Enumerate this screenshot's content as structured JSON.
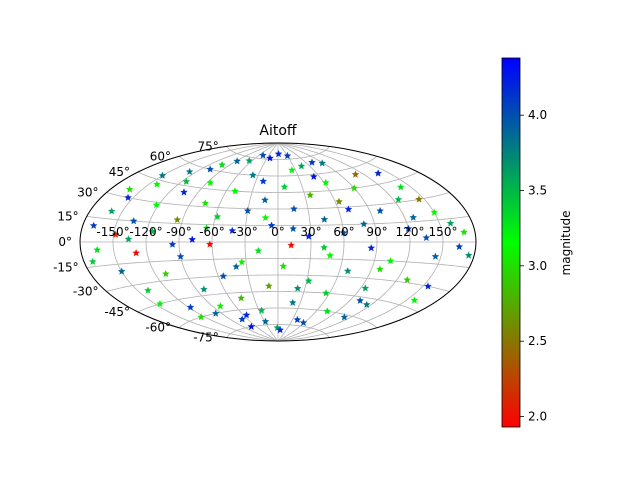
{
  "chart_data": {
    "type": "scatter",
    "projection": "aitoff",
    "title": "Aitoff",
    "grid": true,
    "marker": "star",
    "longitude_ticks": [
      "-150°",
      "-120°",
      "-90°",
      "-60°",
      "-30°",
      "0°",
      "30°",
      "60°",
      "90°",
      "120°",
      "150°"
    ],
    "latitude_ticks": [
      "75°",
      "60°",
      "45°",
      "30°",
      "15°",
      "0°",
      "-15°",
      "-30°",
      "-45°",
      "-60°",
      "-75°"
    ],
    "colorbar": {
      "label": "magnitude",
      "range": [
        1.93,
        4.38
      ],
      "ticks": [
        "2.0",
        "2.5",
        "3.0",
        "3.5",
        "4.0"
      ],
      "colors": [
        "#ff0000",
        "#00ff00",
        "#0000ff"
      ]
    },
    "points": [
      {
        "lon": -170,
        "lat": 10,
        "mag": 4.1
      },
      {
        "lon": -165,
        "lat": -5,
        "mag": 3.3
      },
      {
        "lon": -160,
        "lat": 20,
        "mag": 3.6
      },
      {
        "lon": -155,
        "lat": 30,
        "mag": 4.2
      },
      {
        "lon": -150,
        "lat": -20,
        "mag": 3.9
      },
      {
        "lon": -148,
        "lat": 5,
        "mag": 2.1
      },
      {
        "lon": -142,
        "lat": 42,
        "mag": 3.1
      },
      {
        "lon": -140,
        "lat": -35,
        "mag": 3.4
      },
      {
        "lon": -135,
        "lat": 15,
        "mag": 4.0
      },
      {
        "lon": -130,
        "lat": -8,
        "mag": 1.95
      },
      {
        "lon": -128,
        "lat": 55,
        "mag": 3.8
      },
      {
        "lon": -122,
        "lat": 28,
        "mag": 3.2
      },
      {
        "lon": -118,
        "lat": -52,
        "mag": 4.1
      },
      {
        "lon": -115,
        "lat": 8,
        "mag": 3.5
      },
      {
        "lon": -110,
        "lat": -25,
        "mag": 2.9
      },
      {
        "lon": -105,
        "lat": 40,
        "mag": 4.2
      },
      {
        "lon": -102,
        "lat": 65,
        "mag": 3.3
      },
      {
        "lon": -98,
        "lat": -60,
        "mag": 3.9
      },
      {
        "lon": -95,
        "lat": 18,
        "mag": 2.6
      },
      {
        "lon": -90,
        "lat": -12,
        "mag": 4.0
      },
      {
        "lon": -86,
        "lat": 50,
        "mag": 3.1
      },
      {
        "lon": -82,
        "lat": -40,
        "mag": 3.7
      },
      {
        "lon": -78,
        "lat": 2,
        "mag": 4.3
      },
      {
        "lon": -75,
        "lat": 33,
        "mag": 3.0
      },
      {
        "lon": -70,
        "lat": -68,
        "mag": 4.1
      },
      {
        "lon": -66,
        "lat": 72,
        "mag": 3.6
      },
      {
        "lon": -62,
        "lat": -2,
        "mag": 1.97
      },
      {
        "lon": -58,
        "lat": 22,
        "mag": 3.4
      },
      {
        "lon": -55,
        "lat": -30,
        "mag": 4.0
      },
      {
        "lon": -50,
        "lat": 45,
        "mag": 3.2
      },
      {
        "lon": -46,
        "lat": -50,
        "mag": 2.8
      },
      {
        "lon": -42,
        "lat": 10,
        "mag": 4.2
      },
      {
        "lon": -38,
        "lat": 60,
        "mag": 3.8
      },
      {
        "lon": -34,
        "lat": -18,
        "mag": 3.1
      },
      {
        "lon": -30,
        "lat": 28,
        "mag": 4.0
      },
      {
        "lon": -26,
        "lat": -62,
        "mag": 3.5
      },
      {
        "lon": -22,
        "lat": 76,
        "mag": 4.3
      },
      {
        "lon": -18,
        "lat": -8,
        "mag": 3.3
      },
      {
        "lon": -14,
        "lat": 38,
        "mag": 3.9
      },
      {
        "lon": -10,
        "lat": -40,
        "mag": 2.7
      },
      {
        "lon": -6,
        "lat": 15,
        "mag": 4.1
      },
      {
        "lon": -2,
        "lat": -78,
        "mag": 3.6
      },
      {
        "lon": 2,
        "lat": 80,
        "mag": 4.2
      },
      {
        "lon": 5,
        "lat": -22,
        "mag": 3.0
      },
      {
        "lon": 8,
        "lat": 50,
        "mag": 3.4
      },
      {
        "lon": 12,
        "lat": -3,
        "mag": 2.0
      },
      {
        "lon": 16,
        "lat": 30,
        "mag": 4.0
      },
      {
        "lon": 20,
        "lat": -55,
        "mag": 3.8
      },
      {
        "lon": 24,
        "lat": 65,
        "mag": 3.2
      },
      {
        "lon": 28,
        "lat": 5,
        "mag": 4.2
      },
      {
        "lon": 32,
        "lat": -35,
        "mag": 3.5
      },
      {
        "lon": 36,
        "lat": 42,
        "mag": 2.8
      },
      {
        "lon": 40,
        "lat": -70,
        "mag": 4.1
      },
      {
        "lon": 44,
        "lat": 20,
        "mag": 3.9
      },
      {
        "lon": 48,
        "lat": -12,
        "mag": 3.1
      },
      {
        "lon": 52,
        "lat": 58,
        "mag": 4.3
      },
      {
        "lon": 56,
        "lat": -45,
        "mag": 3.4
      },
      {
        "lon": 60,
        "lat": 8,
        "mag": 4.0
      },
      {
        "lon": 64,
        "lat": 35,
        "mag": 2.6
      },
      {
        "lon": 68,
        "lat": -25,
        "mag": 3.7
      },
      {
        "lon": 72,
        "lat": 70,
        "mag": 4.1
      },
      {
        "lon": 76,
        "lat": -60,
        "mag": 3.3
      },
      {
        "lon": 80,
        "lat": 15,
        "mag": 3.9
      },
      {
        "lon": 85,
        "lat": -5,
        "mag": 4.2
      },
      {
        "lon": 90,
        "lat": 45,
        "mag": 3.0
      },
      {
        "lon": 95,
        "lat": -38,
        "mag": 3.6
      },
      {
        "lon": 100,
        "lat": 25,
        "mag": 4.0
      },
      {
        "lon": 105,
        "lat": -15,
        "mag": 3.2
      },
      {
        "lon": 110,
        "lat": 55,
        "mag": 2.4
      },
      {
        "lon": 115,
        "lat": -50,
        "mag": 3.8
      },
      {
        "lon": 120,
        "lat": 10,
        "mag": 4.1
      },
      {
        "lon": 125,
        "lat": 32,
        "mag": 3.5
      },
      {
        "lon": 130,
        "lat": -28,
        "mag": 2.9
      },
      {
        "lon": 135,
        "lat": 3,
        "mag": 4.0
      },
      {
        "lon": 140,
        "lat": 40,
        "mag": 3.3
      },
      {
        "lon": 145,
        "lat": -10,
        "mag": 3.9
      },
      {
        "lon": 150,
        "lat": 20,
        "mag": 3.1
      },
      {
        "lon": 155,
        "lat": -30,
        "mag": 4.2
      },
      {
        "lon": 160,
        "lat": 12,
        "mag": 3.6
      },
      {
        "lon": 165,
        "lat": -3,
        "mag": 4.1
      },
      {
        "lon": 170,
        "lat": 6,
        "mag": 3.0
      },
      {
        "lon": 175,
        "lat": -8,
        "mag": 3.7
      },
      {
        "lon": -172,
        "lat": -12,
        "mag": 3.4
      },
      {
        "lon": -162,
        "lat": 35,
        "mag": 3.0
      },
      {
        "lon": -145,
        "lat": -45,
        "mag": 3.2
      },
      {
        "lon": -125,
        "lat": -60,
        "mag": 3.0
      },
      {
        "lon": -108,
        "lat": 60,
        "mag": 4.0
      },
      {
        "lon": -88,
        "lat": 70,
        "mag": 3.9
      },
      {
        "lon": -72,
        "lat": -75,
        "mag": 4.3
      },
      {
        "lon": -48,
        "lat": 78,
        "mag": 4.0
      },
      {
        "lon": -28,
        "lat": -72,
        "mag": 3.9
      },
      {
        "lon": 8,
        "lat": -80,
        "mag": 4.2
      },
      {
        "lon": 30,
        "lat": 78,
        "mag": 4.1
      },
      {
        "lon": 58,
        "lat": -72,
        "mag": 4.0
      },
      {
        "lon": 88,
        "lat": 68,
        "mag": 3.8
      },
      {
        "lon": 112,
        "lat": -62,
        "mag": 3.9
      },
      {
        "lon": 138,
        "lat": 52,
        "mag": 4.2
      },
      {
        "lon": 158,
        "lat": -40,
        "mag": 3.2
      },
      {
        "lon": -136,
        "lat": 2,
        "mag": 3.6
      },
      {
        "lon": -96,
        "lat": -2,
        "mag": 4.1
      },
      {
        "lon": -66,
        "lat": 12,
        "mag": 3.3
      },
      {
        "lon": -40,
        "lat": -22,
        "mag": 3.9
      },
      {
        "lon": -12,
        "lat": 22,
        "mag": 3.1
      },
      {
        "lon": 14,
        "lat": 12,
        "mag": 4.0
      },
      {
        "lon": 42,
        "lat": -5,
        "mag": 3.4
      },
      {
        "lon": 70,
        "lat": 28,
        "mag": 4.2
      },
      {
        "lon": 98,
        "lat": -22,
        "mag": 3.0
      },
      {
        "lon": 128,
        "lat": 18,
        "mag": 3.9
      },
      {
        "lon": -115,
        "lat": 48,
        "mag": 3.5
      },
      {
        "lon": -80,
        "lat": -55,
        "mag": 3.1
      },
      {
        "lon": -20,
        "lat": 55,
        "mag": 4.1
      },
      {
        "lon": 22,
        "lat": -42,
        "mag": 3.7
      },
      {
        "lon": 62,
        "lat": 52,
        "mag": 3.2
      },
      {
        "lon": 102,
        "lat": -48,
        "mag": 4.0
      },
      {
        "lon": 145,
        "lat": 30,
        "mag": 2.5
      },
      {
        "lon": -150,
        "lat": 48,
        "mag": 3.8
      },
      {
        "lon": -55,
        "lat": -65,
        "mag": 4.2
      },
      {
        "lon": 45,
        "lat": 68,
        "mag": 3.6
      }
    ]
  }
}
